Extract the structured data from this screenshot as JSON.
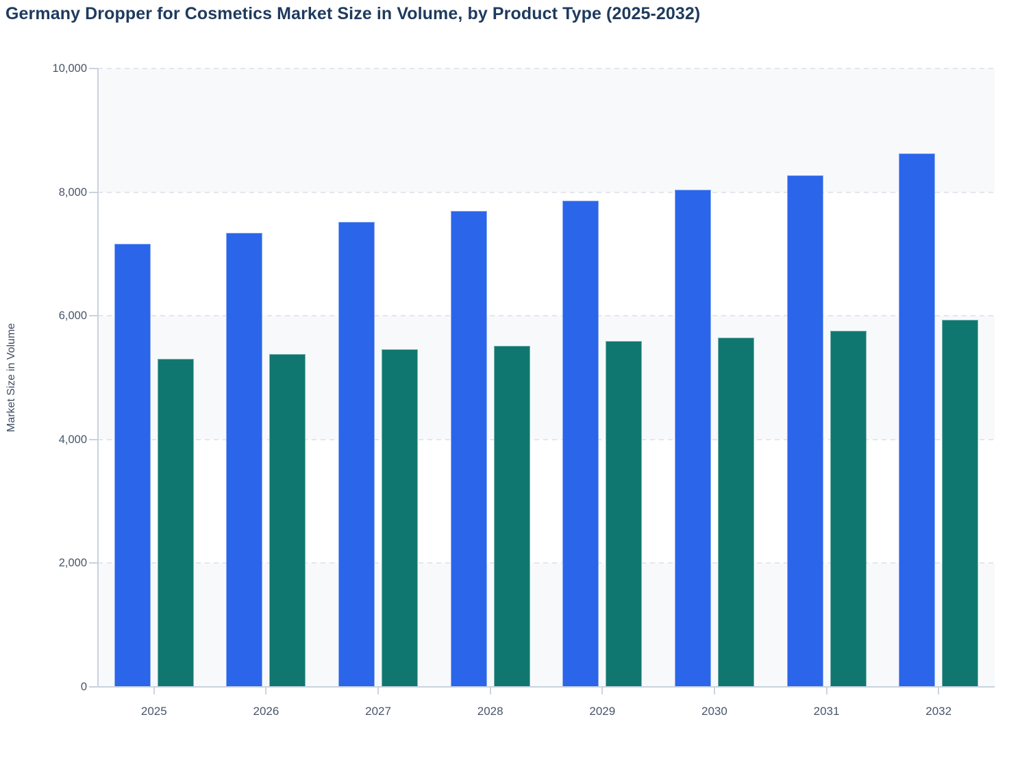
{
  "page": {
    "title": "Germany Dropper for Cosmetics Market Size in Volume, by Product Type (2025-2032)"
  },
  "chart_data": {
    "type": "bar",
    "title": "Germany Dropper for Cosmetics Market Size in Volume, by Product Type (2025-2032)",
    "xlabel": "",
    "ylabel": "Market Size in Volume",
    "ylim": [
      0,
      10000
    ],
    "y_ticks": {
      "values": [
        0,
        2000,
        4000,
        6000,
        8000,
        10000
      ],
      "labels": [
        "0",
        "2,000",
        "4,000",
        "6,000",
        "8,000",
        "10,000"
      ]
    },
    "categories": [
      "2025",
      "2026",
      "2027",
      "2028",
      "2029",
      "2030",
      "2031",
      "2032"
    ],
    "series": [
      {
        "id": "series-1-blue",
        "color": "#2B65E9",
        "values": [
          7170,
          7340,
          7520,
          7695,
          7865,
          8040,
          8270,
          8625
        ]
      },
      {
        "id": "series-2-teal",
        "color": "#107770",
        "values": [
          5305,
          5380,
          5460,
          5515,
          5590,
          5650,
          5760,
          5935
        ]
      }
    ],
    "legend": "none",
    "grid": "horizontal dashed gridlines every 2,000 with alternating row shading",
    "colors": {
      "row_band": "#F8F9FB",
      "gridline": "#E3E6EC",
      "axis_line": "#C9D2DE",
      "tick_text": "#475569",
      "title_text": "#1F3A5E"
    }
  }
}
